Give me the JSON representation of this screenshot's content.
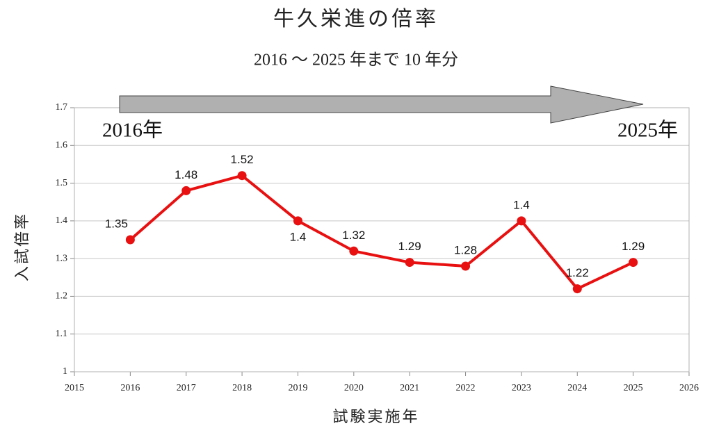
{
  "chart_data": {
    "type": "line",
    "title": "牛久栄進の倍率",
    "subtitle": "2016 ～ 2025 年まで 10 年分",
    "x_label": "試験実施年",
    "y_label": "入試倍率",
    "annotations": [
      "2016年",
      "2025年"
    ],
    "x": [
      2016,
      2017,
      2018,
      2019,
      2020,
      2021,
      2022,
      2023,
      2024,
      2025
    ],
    "values": [
      1.35,
      1.48,
      1.52,
      1.4,
      1.32,
      1.29,
      1.28,
      1.4,
      1.22,
      1.29
    ],
    "color": "#e81010",
    "xlim": [
      2015,
      2026
    ],
    "xticks": [
      2015,
      2016,
      2017,
      2018,
      2019,
      2020,
      2021,
      2022,
      2023,
      2024,
      2025,
      2026
    ],
    "ylim": [
      1,
      1.7
    ],
    "yticks": [
      1,
      1.1,
      1.2,
      1.3,
      1.4,
      1.5,
      1.6,
      1.7
    ],
    "grid": true
  }
}
